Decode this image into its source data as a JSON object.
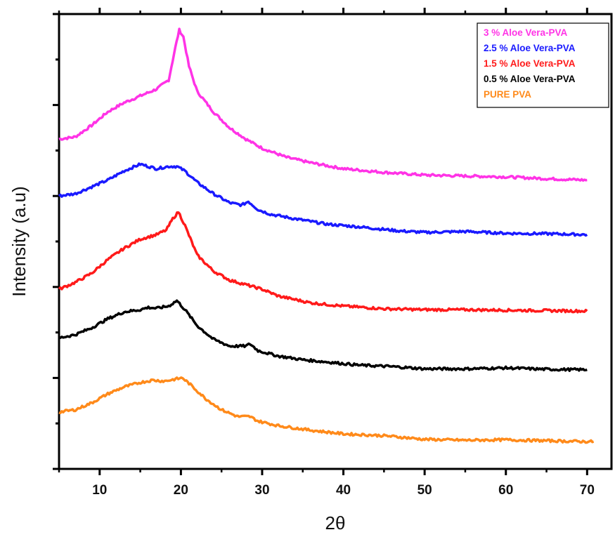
{
  "chart_data": {
    "type": "line",
    "title": "",
    "xlabel": "2θ",
    "ylabel": "Intensity (a.u)",
    "xlim": [
      5,
      73
    ],
    "ylim": [
      0,
      100
    ],
    "x_ticks": [
      10,
      20,
      30,
      40,
      50,
      60,
      70
    ],
    "y_tick_labels_shown": false,
    "grid": false,
    "legend_position": "top-right",
    "series": [
      {
        "name": "3 % Aloe Vera-PVA",
        "color": "#ff33e6",
        "points": [
          [
            5,
            72.5
          ],
          [
            7,
            73.0
          ],
          [
            9,
            75.5
          ],
          [
            11,
            78.5
          ],
          [
            13,
            80.5
          ],
          [
            15,
            82.0
          ],
          [
            17,
            83.5
          ],
          [
            18.5,
            85.5
          ],
          [
            19.3,
            92.5
          ],
          [
            19.8,
            96.5
          ],
          [
            20.3,
            95.0
          ],
          [
            21,
            88.5
          ],
          [
            22,
            83.0
          ],
          [
            24,
            78.5
          ],
          [
            26,
            75.0
          ],
          [
            28,
            72.5
          ],
          [
            30,
            70.5
          ],
          [
            33,
            68.5
          ],
          [
            36,
            67.3
          ],
          [
            40,
            66.0
          ],
          [
            45,
            65.2
          ],
          [
            50,
            64.6
          ],
          [
            55,
            64.4
          ],
          [
            60,
            64.2
          ],
          [
            65,
            63.8
          ],
          [
            70,
            63.5
          ]
        ]
      },
      {
        "name": "2.5 % Aloe Vera-PVA",
        "color": "#1a1aff",
        "points": [
          [
            5,
            60.0
          ],
          [
            7,
            60.5
          ],
          [
            9,
            62.0
          ],
          [
            11,
            63.5
          ],
          [
            13,
            65.5
          ],
          [
            15,
            67.0
          ],
          [
            16,
            66.5
          ],
          [
            17,
            66.0
          ],
          [
            18.5,
            66.5
          ],
          [
            19.5,
            66.5
          ],
          [
            20.5,
            65.5
          ],
          [
            22,
            63.0
          ],
          [
            24,
            60.5
          ],
          [
            26,
            58.5
          ],
          [
            27.5,
            58.0
          ],
          [
            28.3,
            58.8
          ],
          [
            29.5,
            57.0
          ],
          [
            31,
            56.0
          ],
          [
            34,
            55.0
          ],
          [
            38,
            53.8
          ],
          [
            42,
            53.2
          ],
          [
            47,
            52.3
          ],
          [
            50,
            52.0
          ],
          [
            55,
            52.2
          ],
          [
            60,
            51.8
          ],
          [
            65,
            51.7
          ],
          [
            70,
            51.5
          ]
        ]
      },
      {
        "name": "1.5 % Aloe Vera-PVA",
        "color": "#ff1a1a",
        "points": [
          [
            5,
            39.5
          ],
          [
            7,
            41.0
          ],
          [
            9,
            43.0
          ],
          [
            11,
            46.0
          ],
          [
            13,
            48.5
          ],
          [
            15,
            50.5
          ],
          [
            17,
            51.5
          ],
          [
            18.2,
            52.5
          ],
          [
            19,
            55.0
          ],
          [
            19.7,
            56.5
          ],
          [
            20.5,
            53.5
          ],
          [
            22,
            47.0
          ],
          [
            24,
            43.5
          ],
          [
            26,
            41.5
          ],
          [
            28,
            40.5
          ],
          [
            30,
            39.5
          ],
          [
            32,
            38.0
          ],
          [
            36,
            36.5
          ],
          [
            40,
            35.8
          ],
          [
            45,
            35.2
          ],
          [
            50,
            35.0
          ],
          [
            55,
            35.0
          ],
          [
            60,
            34.9
          ],
          [
            65,
            34.8
          ],
          [
            70,
            34.7
          ]
        ]
      },
      {
        "name": "0.5 % Aloe Vera-PVA",
        "color": "#000000",
        "points": [
          [
            5,
            28.8
          ],
          [
            7,
            29.5
          ],
          [
            9,
            31.0
          ],
          [
            11,
            33.0
          ],
          [
            13,
            34.5
          ],
          [
            15,
            35.0
          ],
          [
            16,
            35.5
          ],
          [
            17,
            35.3
          ],
          [
            18.5,
            35.8
          ],
          [
            19.5,
            37.0
          ],
          [
            20.5,
            35.0
          ],
          [
            22,
            31.5
          ],
          [
            24,
            28.5
          ],
          [
            26,
            27.0
          ],
          [
            28,
            27.0
          ],
          [
            28.5,
            27.5
          ],
          [
            29.5,
            26.0
          ],
          [
            32,
            24.8
          ],
          [
            35,
            24.0
          ],
          [
            38,
            23.5
          ],
          [
            42,
            22.8
          ],
          [
            46,
            22.5
          ],
          [
            50,
            22.0
          ],
          [
            55,
            22.0
          ],
          [
            60,
            22.2
          ],
          [
            65,
            21.9
          ],
          [
            70,
            21.8
          ]
        ]
      },
      {
        "name": "PURE PVA",
        "color": "#ff8a1a",
        "points": [
          [
            5,
            12.5
          ],
          [
            7,
            13.0
          ],
          [
            9,
            14.5
          ],
          [
            11,
            16.5
          ],
          [
            13,
            18.0
          ],
          [
            15,
            19.0
          ],
          [
            16.5,
            19.5
          ],
          [
            18,
            19.3
          ],
          [
            19.5,
            19.8
          ],
          [
            20.2,
            20.0
          ],
          [
            21,
            18.8
          ],
          [
            23,
            15.5
          ],
          [
            25,
            13.0
          ],
          [
            27,
            11.5
          ],
          [
            28.5,
            11.5
          ],
          [
            29.5,
            10.5
          ],
          [
            32,
            9.5
          ],
          [
            36,
            8.5
          ],
          [
            40,
            7.7
          ],
          [
            45,
            7.3
          ],
          [
            50,
            6.5
          ],
          [
            55,
            6.3
          ],
          [
            60,
            6.4
          ],
          [
            65,
            6.2
          ],
          [
            70,
            6.0
          ],
          [
            70.8,
            6.0
          ]
        ]
      }
    ]
  }
}
